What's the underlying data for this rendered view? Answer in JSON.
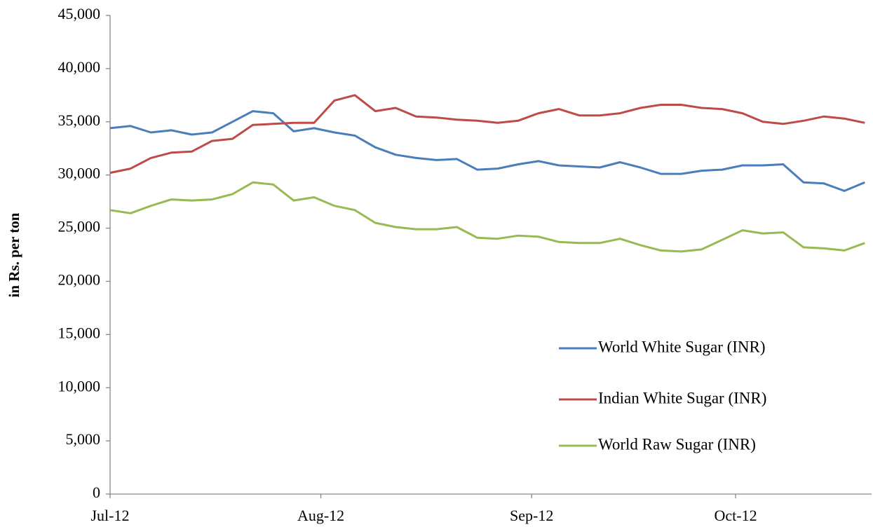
{
  "chart_data": {
    "type": "line",
    "y_label": "in Rs. per ton",
    "x": [
      0,
      3,
      6,
      9,
      12,
      15,
      18,
      21,
      24,
      27,
      30,
      33,
      36,
      39,
      42,
      45,
      48,
      51,
      54,
      57,
      60,
      63,
      66,
      69,
      72,
      75,
      78,
      81,
      84,
      87,
      90,
      93,
      96,
      99,
      102,
      105,
      108,
      111
    ],
    "xlim": [
      0,
      112
    ],
    "xticks": [
      {
        "value": 0,
        "label": "Jul-12"
      },
      {
        "value": 31,
        "label": "Aug-12"
      },
      {
        "value": 62,
        "label": "Sep-12"
      },
      {
        "value": 92,
        "label": "Oct-12"
      }
    ],
    "ylim": [
      0,
      45000
    ],
    "yticks": [
      0,
      {
        "value": 5000,
        "label": "5,000"
      },
      {
        "value": 10000,
        "label": "10,000"
      },
      {
        "value": 15000,
        "label": "15,000"
      },
      {
        "value": 20000,
        "label": "20,000"
      },
      {
        "value": 25000,
        "label": "25,000"
      },
      {
        "value": 30000,
        "label": "30,000"
      },
      {
        "value": 35000,
        "label": "35,000"
      },
      {
        "value": 40000,
        "label": "40,000"
      },
      {
        "value": 45000,
        "label": "45,000"
      }
    ],
    "grid": false,
    "legend": "lower right",
    "series": [
      {
        "name": "World White Sugar (INR)",
        "color": "#4a7ebb",
        "values": [
          34400,
          34600,
          34000,
          34200,
          33800,
          34000,
          35000,
          36000,
          35800,
          34100,
          34400,
          34000,
          33700,
          32600,
          31900,
          31600,
          31400,
          31500,
          30500,
          30600,
          31000,
          31300,
          30900,
          30800,
          30700,
          31200,
          30700,
          30100,
          30100,
          30400,
          30500,
          30900,
          30900,
          31000,
          29300,
          29200,
          28500,
          29300
        ]
      },
      {
        "name": "Indian White Sugar (INR)",
        "color": "#be4b48",
        "values": [
          30200,
          30600,
          31600,
          32100,
          32200,
          33200,
          33400,
          34700,
          34800,
          34900,
          34900,
          37000,
          37500,
          36000,
          36300,
          35500,
          35400,
          35200,
          35100,
          34900,
          35100,
          35800,
          36200,
          35600,
          35600,
          35800,
          36300,
          36600,
          36600,
          36300,
          36200,
          35800,
          35000,
          34800,
          35100,
          35500,
          35300,
          34900
        ]
      },
      {
        "name": "World Raw Sugar (INR)",
        "color": "#98b954",
        "values": [
          26700,
          26400,
          27100,
          27700,
          27600,
          27700,
          28200,
          29300,
          29100,
          27600,
          27900,
          27100,
          26700,
          25500,
          25100,
          24900,
          24900,
          25100,
          24100,
          24000,
          24300,
          24200,
          23700,
          23600,
          23600,
          24000,
          23400,
          22900,
          22800,
          23000,
          23900,
          24800,
          24500,
          24600,
          23200,
          23100,
          22900,
          23600
        ]
      }
    ]
  }
}
